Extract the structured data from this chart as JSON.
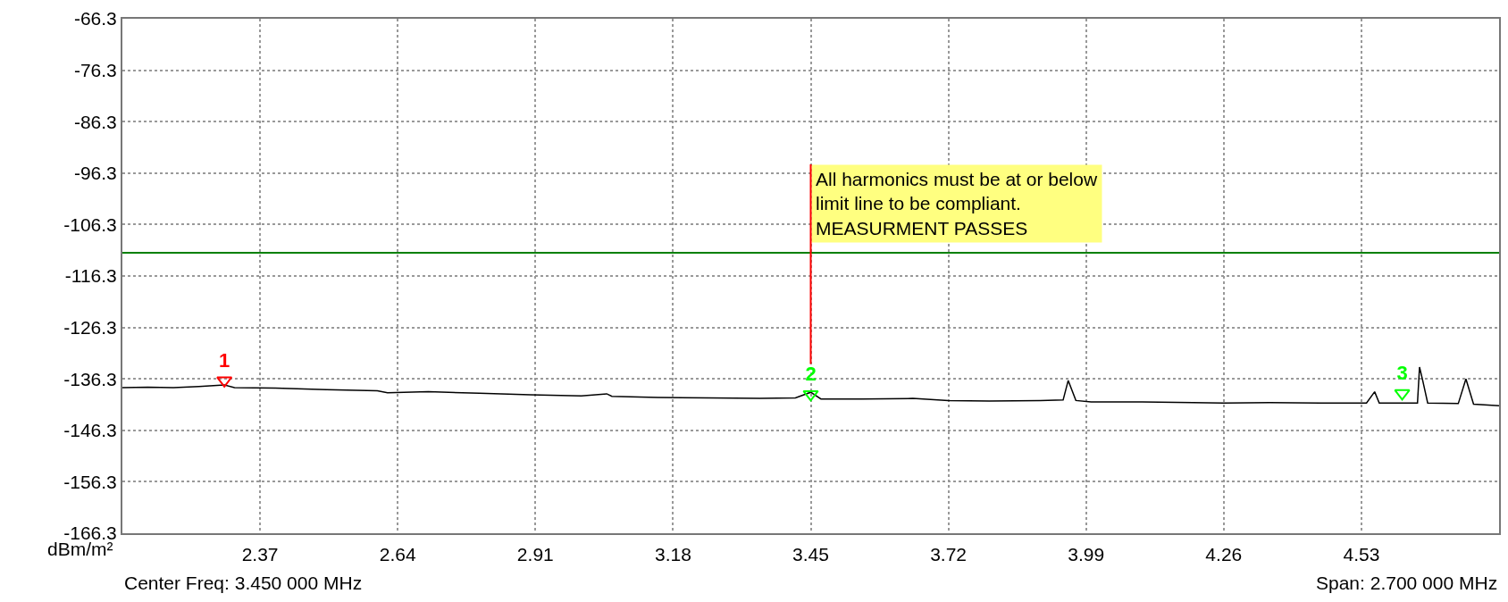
{
  "chart_data": {
    "type": "line",
    "ylabel": "dBm/m²",
    "xlim": [
      2.1,
      4.8
    ],
    "xticks": [
      2.37,
      2.64,
      2.91,
      3.18,
      3.45,
      3.72,
      3.99,
      4.26,
      4.53
    ],
    "ylim": [
      -166.3,
      -66.3
    ],
    "yticks": [
      -166.3,
      -156.3,
      -146.3,
      -136.3,
      -126.3,
      -116.3,
      -106.3,
      -96.3,
      -86.3,
      -76.3,
      -66.3
    ],
    "grid": true,
    "series": [
      {
        "color": "#000000",
        "line_style": "solid",
        "x": [
          2.1,
          2.15,
          2.2,
          2.25,
          2.3,
          2.32,
          2.4,
          2.5,
          2.6,
          2.62,
          2.7,
          2.8,
          2.9,
          3.0,
          3.05,
          3.06,
          3.15,
          3.25,
          3.35,
          3.42,
          3.45,
          3.47,
          3.55,
          3.65,
          3.72,
          3.8,
          3.9,
          3.945,
          3.955,
          3.97,
          4.0,
          4.1,
          4.2,
          4.26,
          4.35,
          4.45,
          4.54,
          4.556,
          4.565,
          4.62,
          4.64,
          4.644,
          4.65,
          4.66,
          4.72,
          4.735,
          4.75,
          4.8
        ],
        "values": [
          -138.0,
          -137.9,
          -138.0,
          -137.8,
          -137.5,
          -138.0,
          -138.1,
          -138.4,
          -138.6,
          -139.0,
          -138.8,
          -139.1,
          -139.4,
          -139.6,
          -139.2,
          -139.7,
          -139.9,
          -140.0,
          -140.1,
          -140.0,
          -138.9,
          -140.2,
          -140.2,
          -140.1,
          -140.5,
          -140.6,
          -140.5,
          -140.4,
          -136.6,
          -140.5,
          -140.8,
          -140.8,
          -140.9,
          -141.0,
          -140.9,
          -141.0,
          -141.0,
          -138.8,
          -141.0,
          -141.0,
          -141.0,
          -134.0,
          -136.5,
          -141.0,
          -141.1,
          -136.3,
          -141.2,
          -141.5
        ]
      },
      {
        "type": "scatter",
        "marker": "triangle",
        "name": "1",
        "x": [
          2.3
        ],
        "values": [
          -136.6
        ],
        "color": "#ff0000"
      },
      {
        "type": "scatter",
        "marker": "triangle",
        "name": "2",
        "x": [
          3.45
        ],
        "values": [
          -139.3
        ],
        "color": "#00ff00"
      },
      {
        "type": "scatter",
        "marker": "triangle",
        "name": "3",
        "x": [
          4.61
        ],
        "values": [
          -139.1
        ],
        "color": "#00ff00"
      }
    ],
    "ref_lines": [
      {
        "axis": "y",
        "value": -111.8,
        "color": "#008000",
        "line_style": "solid"
      }
    ],
    "annotations": [
      {
        "text": "All harmonics must be at or below\nlimit line to be compliant.\nMEASURMENT PASSES",
        "x": 3.45,
        "y": -139.3
      },
      "Center Freq: 3.450 000 MHz",
      "Span: 2.700 000 MHz"
    ]
  }
}
